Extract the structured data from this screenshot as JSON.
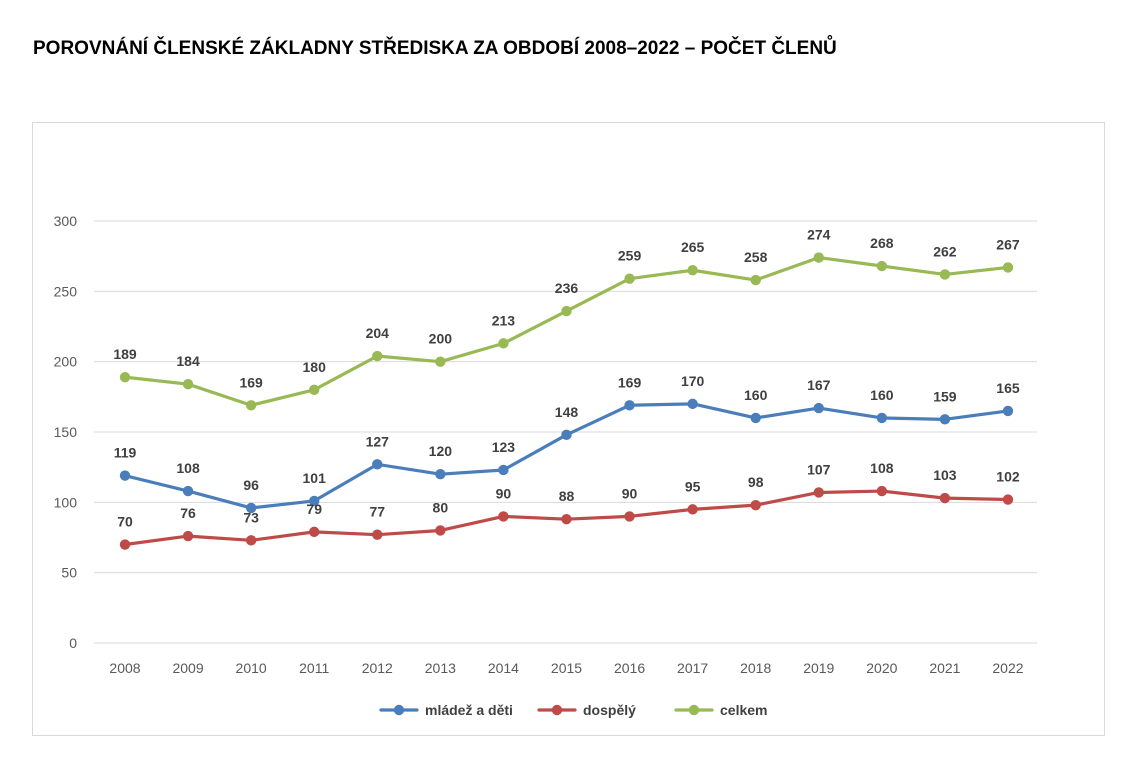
{
  "title": "POROVNÁNÍ ČLENSKÉ ZÁKLADNY STŘEDISKA ZA OBDOBÍ 2008–2022 – POČET ČLENŮ",
  "chart_data": {
    "type": "line",
    "categories": [
      "2008",
      "2009",
      "2010",
      "2011",
      "2012",
      "2013",
      "2014",
      "2015",
      "2016",
      "2017",
      "2018",
      "2019",
      "2020",
      "2021",
      "2022"
    ],
    "ylim": [
      0,
      300
    ],
    "yticks": [
      0,
      50,
      100,
      150,
      200,
      250,
      300
    ],
    "grid": true,
    "legend_position": "bottom",
    "series": [
      {
        "name": "mládež a děti",
        "color": "#4a7ebb",
        "values": [
          119,
          108,
          96,
          101,
          127,
          120,
          123,
          148,
          169,
          170,
          160,
          167,
          160,
          159,
          165
        ]
      },
      {
        "name": "dospělý",
        "color": "#be4b48",
        "values": [
          70,
          76,
          73,
          79,
          77,
          80,
          90,
          88,
          90,
          95,
          98,
          107,
          108,
          103,
          102
        ]
      },
      {
        "name": "celkem",
        "color": "#98b954",
        "values": [
          189,
          184,
          169,
          180,
          204,
          200,
          213,
          236,
          259,
          265,
          258,
          274,
          268,
          262,
          267
        ]
      }
    ]
  }
}
